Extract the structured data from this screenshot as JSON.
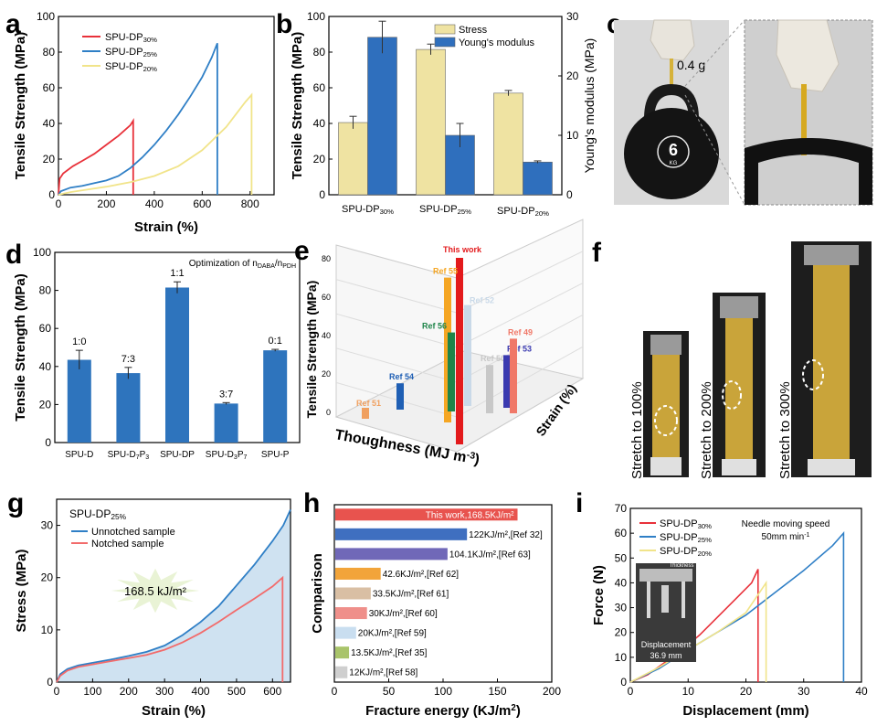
{
  "panel_letters": [
    "a",
    "b",
    "c",
    "d",
    "e",
    "f",
    "g",
    "h",
    "i"
  ],
  "colors": {
    "red": "#e8313a",
    "blue": "#2f7fc6",
    "yellow": "#f0e29a",
    "bar_blue": "#2f6fbd",
    "bar_yellow": "#efe3a2",
    "panel_d_blue": "#2e74bd",
    "gray_bg": "#e6e6e6",
    "shade": "#cfe2f1"
  },
  "panel_c": {
    "weight_label": "0.4 g",
    "kettlebell_number": "6",
    "kettlebell_unit": "KG"
  },
  "panel_f": {
    "labels": [
      "Stretch to 100%",
      "Stretch to 200%",
      "Stretch to 300%"
    ]
  },
  "chart_data": [
    {
      "id": "a",
      "type": "line",
      "xlabel": "Strain (%)",
      "ylabel": "Tensile Strength (MPa)",
      "xlim": [
        0,
        900
      ],
      "ylim": [
        0,
        100
      ],
      "xticks": [
        0,
        200,
        400,
        600,
        800
      ],
      "yticks": [
        0,
        20,
        40,
        60,
        80,
        100
      ],
      "legend_position": "top-left",
      "series": [
        {
          "name": "SPU-DP",
          "sub": "30%",
          "color": "#e8313a",
          "points": [
            [
              0,
              0
            ],
            [
              5,
              9
            ],
            [
              20,
              12
            ],
            [
              60,
              16
            ],
            [
              100,
              19
            ],
            [
              150,
              23
            ],
            [
              200,
              28
            ],
            [
              250,
              33
            ],
            [
              300,
              39
            ],
            [
              312,
              41.5
            ],
            [
              312,
              0
            ]
          ]
        },
        {
          "name": "SPU-DP",
          "sub": "25%",
          "color": "#2f7fc6",
          "points": [
            [
              0,
              0
            ],
            [
              10,
              2
            ],
            [
              50,
              4
            ],
            [
              100,
              5
            ],
            [
              150,
              6.5
            ],
            [
              200,
              8
            ],
            [
              250,
              10.5
            ],
            [
              300,
              15
            ],
            [
              350,
              21
            ],
            [
              400,
              28
            ],
            [
              450,
              36
            ],
            [
              500,
              45
            ],
            [
              550,
              55
            ],
            [
              600,
              66
            ],
            [
              640,
              77
            ],
            [
              663,
              85
            ],
            [
              663,
              0
            ]
          ]
        },
        {
          "name": "SPU-DP",
          "sub": "20%",
          "color": "#f1e48a",
          "points": [
            [
              0,
              0
            ],
            [
              50,
              1.5
            ],
            [
              100,
              2.5
            ],
            [
              200,
              4.5
            ],
            [
              300,
              7
            ],
            [
              400,
              10.5
            ],
            [
              500,
              16
            ],
            [
              600,
              25
            ],
            [
              700,
              38
            ],
            [
              780,
              52
            ],
            [
              806,
              56
            ],
            [
              806,
              0
            ]
          ]
        }
      ]
    },
    {
      "id": "b",
      "type": "bar",
      "ylabel": "Tensile Strength (MPa)",
      "y2label": "Young's modulus (MPa)",
      "ylim": [
        0,
        100
      ],
      "y2lim": [
        0,
        30
      ],
      "yticks": [
        0,
        20,
        40,
        60,
        80,
        100
      ],
      "y2ticks": [
        0,
        10,
        20,
        30
      ],
      "categories": [
        {
          "name": "SPU-DP",
          "sub": "30%"
        },
        {
          "name": "SPU-DP",
          "sub": "25%"
        },
        {
          "name": "SPU-DP",
          "sub": "20%"
        }
      ],
      "legend_position": "top-right",
      "series": [
        {
          "name": "Stress",
          "color": "#efe3a2",
          "values": [
            40.5,
            81.5,
            57.0
          ],
          "errors": [
            3.5,
            3.0,
            1.5
          ],
          "axis": "left"
        },
        {
          "name": "Young's modulus",
          "color": "#2f6fbd",
          "values": [
            26.5,
            10.0,
            5.5
          ],
          "errors": [
            2.7,
            2.0,
            0.2
          ],
          "axis": "right"
        }
      ]
    },
    {
      "id": "d",
      "type": "bar",
      "title": "Optimization of n",
      "title_sub1": "DABA",
      "title_mid": "/n",
      "title_sub2": "PDH",
      "ylabel": "Tensile Strength (MPa)",
      "ylim": [
        0,
        100
      ],
      "yticks": [
        0,
        20,
        40,
        60,
        80,
        100
      ],
      "categories": [
        {
          "name": "SPU-D",
          "sub": ""
        },
        {
          "name": "SPU-D",
          "sub": "7",
          "mid": "P",
          "sub2": "3"
        },
        {
          "name": "SPU-DP",
          "sub": ""
        },
        {
          "name": "SPU-D",
          "sub": "3",
          "mid": "P",
          "sub2": "7"
        },
        {
          "name": "SPU-P",
          "sub": ""
        }
      ],
      "ratios": [
        "1:0",
        "7:3",
        "1:1",
        "3:7",
        "0:1"
      ],
      "values": [
        43.5,
        36.5,
        81.5,
        20.5,
        48.5
      ],
      "errors": [
        5.0,
        3.0,
        3.0,
        0.5,
        0.5
      ],
      "color": "#2e74bd"
    },
    {
      "id": "e",
      "type": "bar",
      "xlabel": "Thoughness (MJ m",
      "xlabel_sup": "-3",
      "xlabel_end": ")",
      "ylabel": "Tensile Strength (MPa)",
      "zlabel": "Strain (%)",
      "ytick_labels": [
        "0",
        "20",
        "40",
        "60",
        "80"
      ],
      "bars": [
        {
          "label": "This work",
          "color": "#e31a1c",
          "value": 85
        },
        {
          "label": "Ref 55",
          "color": "#f5a623",
          "value": 66
        },
        {
          "label": "Ref 56",
          "color": "#1e8449",
          "value": 36
        },
        {
          "label": "Ref 52",
          "color": "#c9d9e8",
          "value": 46
        },
        {
          "label": "Ref 54",
          "color": "#1f5fb4",
          "value": 12
        },
        {
          "label": "Ref 51",
          "color": "#f0a060",
          "value": 5
        },
        {
          "label": "Ref 50",
          "color": "#c8c8c8",
          "value": 22
        },
        {
          "label": "Ref 53",
          "color": "#3a3ab0",
          "value": 24
        },
        {
          "label": "Ref 49",
          "color": "#f07868",
          "value": 34
        }
      ]
    },
    {
      "id": "g",
      "type": "area",
      "title": "SPU-DP",
      "title_sub": "25%",
      "xlabel": "Strain (%)",
      "ylabel": "Stress (MPa)",
      "xlim": [
        0,
        650
      ],
      "ylim": [
        0,
        35
      ],
      "xticks": [
        0,
        100,
        200,
        300,
        400,
        500,
        600
      ],
      "yticks": [
        0,
        10,
        20,
        30
      ],
      "annotation": "168.5 kJ/m²",
      "legend_position": "top-left",
      "series": [
        {
          "name": "Unnotched sample",
          "color": "#2f7fc6",
          "points": [
            [
              0,
              0
            ],
            [
              10,
              1.5
            ],
            [
              30,
              2.5
            ],
            [
              60,
              3.2
            ],
            [
              100,
              3.7
            ],
            [
              150,
              4.3
            ],
            [
              200,
              5.0
            ],
            [
              250,
              5.8
            ],
            [
              300,
              7.0
            ],
            [
              350,
              9.0
            ],
            [
              400,
              11.5
            ],
            [
              450,
              14.5
            ],
            [
              500,
              18.5
            ],
            [
              550,
              22.5
            ],
            [
              600,
              27
            ],
            [
              630,
              30
            ],
            [
              650,
              33
            ]
          ]
        },
        {
          "name": "Notched sample",
          "color": "#f26b6b",
          "points": [
            [
              0,
              0
            ],
            [
              10,
              1.2
            ],
            [
              30,
              2.2
            ],
            [
              60,
              2.9
            ],
            [
              100,
              3.4
            ],
            [
              150,
              4.0
            ],
            [
              200,
              4.6
            ],
            [
              250,
              5.2
            ],
            [
              300,
              6.2
            ],
            [
              350,
              7.6
            ],
            [
              400,
              9.4
            ],
            [
              450,
              11.5
            ],
            [
              500,
              13.8
            ],
            [
              550,
              16.0
            ],
            [
              600,
              18.3
            ],
            [
              628,
              20
            ],
            [
              628,
              0
            ]
          ]
        }
      ]
    },
    {
      "id": "h",
      "type": "bar",
      "orientation": "horizontal",
      "xlabel": "Fracture energy (KJ/m",
      "xlabel_sup": "2",
      "xlabel_end": ")",
      "ylabel": "Comparison",
      "xlim": [
        0,
        200
      ],
      "xticks": [
        0,
        50,
        100,
        150,
        200
      ],
      "bars": [
        {
          "value": 168.5,
          "text": "This work,168.5KJ/m²",
          "color": "#e8534e"
        },
        {
          "value": 122,
          "text": "122KJ/m²,[Ref 32]",
          "color": "#3f6fc0"
        },
        {
          "value": 104.1,
          "text": "104.1KJ/m²,[Ref 63]",
          "color": "#7068b8"
        },
        {
          "value": 42.6,
          "text": "42.6KJ/m²,[Ref 62]",
          "color": "#f2a43a"
        },
        {
          "value": 33.5,
          "text": "33.5KJ/m²,[Ref 61]",
          "color": "#d9bfa4"
        },
        {
          "value": 30,
          "text": "30KJ/m²,[Ref 60]",
          "color": "#ef8f8a"
        },
        {
          "value": 20,
          "text": "20KJ/m²,[Ref 59]",
          "color": "#c9def0"
        },
        {
          "value": 13.5,
          "text": "13.5KJ/m²,[Ref 35]",
          "color": "#a9c46a"
        },
        {
          "value": 12,
          "text": "12KJ/m²,[Ref 58]",
          "color": "#cfcfcf"
        }
      ]
    },
    {
      "id": "i",
      "type": "line",
      "xlabel": "Displacement (mm)",
      "ylabel": "Force (N)",
      "xlim": [
        0,
        40
      ],
      "ylim": [
        0,
        70
      ],
      "xticks": [
        0,
        10,
        20,
        30,
        40
      ],
      "yticks": [
        0,
        10,
        20,
        30,
        40,
        50,
        60,
        70
      ],
      "annotation": "Needle moving speed",
      "annotation2": "50mm min",
      "annotation2_sup": "-1",
      "inset_labels": [
        "Thickness",
        "Displacement",
        "36.9 mm"
      ],
      "legend_position": "top-left",
      "series": [
        {
          "name": "SPU-DP",
          "sub": "30%",
          "color": "#e8313a",
          "points": [
            [
              0,
              0
            ],
            [
              3,
              3
            ],
            [
              6,
              8
            ],
            [
              9,
              13
            ],
            [
              12,
              19
            ],
            [
              15,
              26
            ],
            [
              18,
              33
            ],
            [
              21,
              40
            ],
            [
              22.1,
              45.5
            ],
            [
              22.1,
              0
            ]
          ]
        },
        {
          "name": "SPU-DP",
          "sub": "25%",
          "color": "#2f7fc6",
          "points": [
            [
              0,
              0
            ],
            [
              5,
              5.5
            ],
            [
              10,
              13
            ],
            [
              15,
              20
            ],
            [
              20,
              27
            ],
            [
              25,
              36
            ],
            [
              30,
              45
            ],
            [
              35,
              55
            ],
            [
              36.9,
              60
            ],
            [
              36.9,
              0
            ]
          ]
        },
        {
          "name": "SPU-DP",
          "sub": "20%",
          "color": "#f1e48a",
          "points": [
            [
              0,
              0
            ],
            [
              5,
              6
            ],
            [
              10,
              13
            ],
            [
              15,
              20
            ],
            [
              20,
              28
            ],
            [
              23.5,
              40
            ],
            [
              23.5,
              0
            ]
          ]
        }
      ]
    }
  ]
}
